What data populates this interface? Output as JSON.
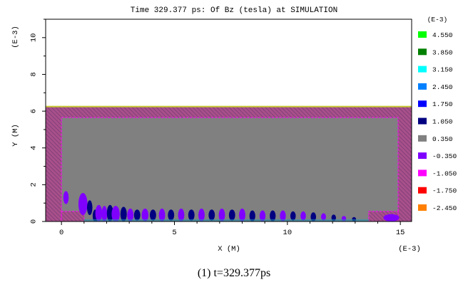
{
  "chart_data": {
    "type": "heatmap",
    "title": "Time 329.377 ps:  Of Bz (tesla) at SIMULATION",
    "xlabel": "X   (M)",
    "ylabel": "Y (M)",
    "x_exponent_label": "(E-3)",
    "y_exponent_label": "(E-3)",
    "xlim": [
      -0.7,
      15.5
    ],
    "ylim": [
      0,
      11
    ],
    "x_ticks": [
      0,
      5,
      10,
      15
    ],
    "y_ticks": [
      0,
      2,
      4,
      6,
      8,
      10
    ],
    "legend_title": "(E-3)",
    "legend": [
      {
        "label": "4.550",
        "color": "#00ff00"
      },
      {
        "label": "3.850",
        "color": "#008000"
      },
      {
        "label": "3.150",
        "color": "#00ffff"
      },
      {
        "label": "2.450",
        "color": "#0080ff"
      },
      {
        "label": "1.750",
        "color": "#0000ff"
      },
      {
        "label": "1.050",
        "color": "#000080"
      },
      {
        "label": "0.350",
        "color": "#808080"
      },
      {
        "label": "-0.350",
        "color": "#8000ff"
      },
      {
        "label": "-1.050",
        "color": "#ff00ff"
      },
      {
        "label": "-1.750",
        "color": "#ff0000"
      },
      {
        "label": "-2.450",
        "color": "#ff8000"
      }
    ],
    "domain": {
      "x": [
        -0.7,
        15.5
      ],
      "y": [
        0,
        6.25
      ]
    },
    "inner_region": {
      "x": [
        0,
        14.9
      ],
      "y": [
        0,
        5.65
      ]
    },
    "left_step": {
      "x": [
        0,
        1.0
      ],
      "y": [
        0,
        0.55
      ]
    },
    "right_step": {
      "x": [
        13.6,
        14.9
      ],
      "y": [
        0,
        0.55
      ]
    },
    "background_level": "0.350",
    "field_lobes": [
      {
        "x": 0.2,
        "y": 1.3,
        "w": 0.12,
        "h": 0.35,
        "color": "#8000ff"
      },
      {
        "x": 0.95,
        "y": 0.95,
        "w": 0.2,
        "h": 0.6,
        "color": "#8000ff"
      },
      {
        "x": 1.25,
        "y": 0.75,
        "w": 0.12,
        "h": 0.4,
        "color": "#000080"
      },
      {
        "x": 1.5,
        "y": 0.3,
        "w": 0.12,
        "h": 0.35,
        "color": "#000080"
      },
      {
        "x": 1.65,
        "y": 0.45,
        "w": 0.15,
        "h": 0.45,
        "color": "#8000ff"
      },
      {
        "x": 1.9,
        "y": 0.4,
        "w": 0.12,
        "h": 0.45,
        "color": "#8000ff"
      },
      {
        "x": 2.15,
        "y": 0.45,
        "w": 0.14,
        "h": 0.45,
        "color": "#000080"
      },
      {
        "x": 2.4,
        "y": 0.4,
        "w": 0.18,
        "h": 0.45,
        "color": "#8000ff"
      },
      {
        "x": 2.75,
        "y": 0.4,
        "w": 0.14,
        "h": 0.4,
        "color": "#000080"
      },
      {
        "x": 3.05,
        "y": 0.35,
        "w": 0.14,
        "h": 0.35,
        "color": "#8000ff"
      },
      {
        "x": 3.35,
        "y": 0.35,
        "w": 0.14,
        "h": 0.3,
        "color": "#000080"
      },
      {
        "x": 3.7,
        "y": 0.35,
        "w": 0.15,
        "h": 0.35,
        "color": "#8000ff"
      },
      {
        "x": 4.05,
        "y": 0.35,
        "w": 0.14,
        "h": 0.3,
        "color": "#000080"
      },
      {
        "x": 4.45,
        "y": 0.35,
        "w": 0.14,
        "h": 0.35,
        "color": "#8000ff"
      },
      {
        "x": 4.85,
        "y": 0.35,
        "w": 0.14,
        "h": 0.3,
        "color": "#000080"
      },
      {
        "x": 5.3,
        "y": 0.35,
        "w": 0.14,
        "h": 0.35,
        "color": "#8000ff"
      },
      {
        "x": 5.75,
        "y": 0.35,
        "w": 0.14,
        "h": 0.3,
        "color": "#000080"
      },
      {
        "x": 6.2,
        "y": 0.35,
        "w": 0.14,
        "h": 0.35,
        "color": "#8000ff"
      },
      {
        "x": 6.65,
        "y": 0.35,
        "w": 0.14,
        "h": 0.3,
        "color": "#000080"
      },
      {
        "x": 7.1,
        "y": 0.35,
        "w": 0.14,
        "h": 0.35,
        "color": "#8000ff"
      },
      {
        "x": 7.55,
        "y": 0.35,
        "w": 0.14,
        "h": 0.3,
        "color": "#000080"
      },
      {
        "x": 8.0,
        "y": 0.35,
        "w": 0.14,
        "h": 0.35,
        "color": "#8000ff"
      },
      {
        "x": 8.45,
        "y": 0.3,
        "w": 0.13,
        "h": 0.3,
        "color": "#000080"
      },
      {
        "x": 8.9,
        "y": 0.3,
        "w": 0.13,
        "h": 0.3,
        "color": "#8000ff"
      },
      {
        "x": 9.35,
        "y": 0.3,
        "w": 0.13,
        "h": 0.3,
        "color": "#000080"
      },
      {
        "x": 9.8,
        "y": 0.3,
        "w": 0.13,
        "h": 0.3,
        "color": "#8000ff"
      },
      {
        "x": 10.25,
        "y": 0.3,
        "w": 0.12,
        "h": 0.25,
        "color": "#000080"
      },
      {
        "x": 10.7,
        "y": 0.3,
        "w": 0.12,
        "h": 0.25,
        "color": "#8000ff"
      },
      {
        "x": 11.15,
        "y": 0.25,
        "w": 0.12,
        "h": 0.25,
        "color": "#000080"
      },
      {
        "x": 11.6,
        "y": 0.25,
        "w": 0.11,
        "h": 0.2,
        "color": "#8000ff"
      },
      {
        "x": 12.05,
        "y": 0.2,
        "w": 0.1,
        "h": 0.18,
        "color": "#000080"
      },
      {
        "x": 12.5,
        "y": 0.15,
        "w": 0.1,
        "h": 0.15,
        "color": "#8000ff"
      },
      {
        "x": 12.95,
        "y": 0.12,
        "w": 0.09,
        "h": 0.12,
        "color": "#000080"
      },
      {
        "x": 14.6,
        "y": 0.2,
        "w": 0.35,
        "h": 0.2,
        "color": "#8000ff"
      }
    ]
  }
}
